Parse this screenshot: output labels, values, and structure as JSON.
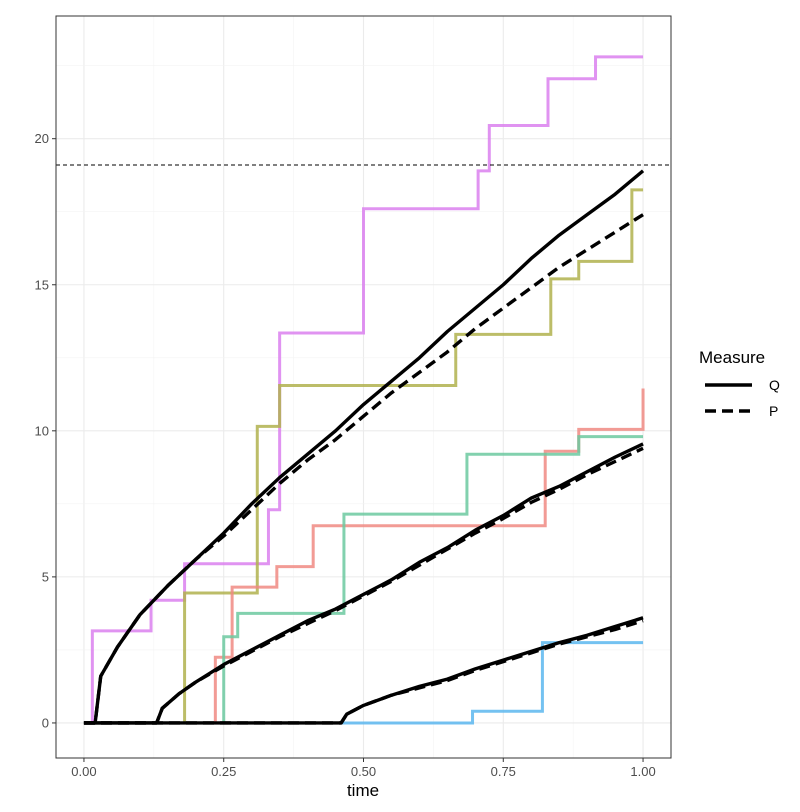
{
  "chart_data": {
    "type": "line",
    "title": "",
    "xlabel": "time",
    "ylabel": "",
    "xlim": [
      -0.05,
      1.05
    ],
    "ylim": [
      -1.2,
      24.2
    ],
    "x_ticks": [
      0,
      0.25,
      0.5,
      0.75,
      1
    ],
    "x_tick_labels": [
      "0.00",
      "0.25",
      "0.50",
      "0.75",
      "1.00"
    ],
    "y_ticks": [
      0,
      5,
      10,
      15,
      20
    ],
    "y_tick_labels": [
      "0",
      "5",
      "10",
      "15",
      "20"
    ],
    "grid": true,
    "reference_line": {
      "y": 19.1,
      "style": "dashed"
    },
    "step_series": [
      {
        "color": "#DA80EE",
        "x": [
          0,
          0.015,
          0.12,
          0.18,
          0.33,
          0.35,
          0.5,
          0.705,
          0.725,
          0.83,
          0.915,
          1.0
        ],
        "y": [
          0,
          3.15,
          4.2,
          5.45,
          7.3,
          13.35,
          17.6,
          18.9,
          20.45,
          22.05,
          22.8,
          22.8
        ]
      },
      {
        "color": "#B0B24E",
        "x": [
          0,
          0.18,
          0.31,
          0.35,
          0.665,
          0.835,
          0.885,
          0.98,
          1.0
        ],
        "y": [
          0,
          4.45,
          10.15,
          11.55,
          13.3,
          15.2,
          15.8,
          18.25,
          18.25
        ]
      },
      {
        "color": "#F08A82",
        "x": [
          0,
          0.235,
          0.265,
          0.345,
          0.41,
          0.825,
          0.885,
          1.0
        ],
        "y": [
          0,
          2.25,
          4.65,
          5.35,
          6.75,
          9.3,
          10.05,
          11.45
        ]
      },
      {
        "color": "#6CC9A0",
        "x": [
          0,
          0.25,
          0.275,
          0.465,
          0.685,
          0.885,
          1.0
        ],
        "y": [
          0,
          2.95,
          3.75,
          7.15,
          9.2,
          9.8,
          9.8
        ]
      },
      {
        "color": "#5CB7EE",
        "x": [
          0,
          0.695,
          0.82,
          1.0
        ],
        "y": [
          0,
          0.4,
          2.75,
          2.75
        ]
      }
    ],
    "series": [
      {
        "name": "Q",
        "style": "solid",
        "start": 0.02,
        "points": [
          [
            0.02,
            0
          ],
          [
            0.03,
            1.6
          ],
          [
            0.06,
            2.6
          ],
          [
            0.1,
            3.7
          ],
          [
            0.15,
            4.7
          ],
          [
            0.2,
            5.6
          ],
          [
            0.25,
            6.5
          ],
          [
            0.3,
            7.5
          ],
          [
            0.35,
            8.4
          ],
          [
            0.4,
            9.2
          ],
          [
            0.45,
            10.0
          ],
          [
            0.5,
            10.9
          ],
          [
            0.55,
            11.7
          ],
          [
            0.6,
            12.5
          ],
          [
            0.65,
            13.4
          ],
          [
            0.7,
            14.2
          ],
          [
            0.75,
            15.0
          ],
          [
            0.8,
            15.9
          ],
          [
            0.85,
            16.7
          ],
          [
            0.9,
            17.4
          ],
          [
            0.95,
            18.1
          ],
          [
            1.0,
            18.9
          ]
        ]
      },
      {
        "name": "P",
        "style": "dashed",
        "start": 0.02,
        "points": [
          [
            0.02,
            0
          ],
          [
            0.03,
            1.6
          ],
          [
            0.06,
            2.6
          ],
          [
            0.1,
            3.7
          ],
          [
            0.15,
            4.7
          ],
          [
            0.2,
            5.6
          ],
          [
            0.25,
            6.4
          ],
          [
            0.3,
            7.3
          ],
          [
            0.35,
            8.2
          ],
          [
            0.4,
            9.0
          ],
          [
            0.45,
            9.7
          ],
          [
            0.5,
            10.5
          ],
          [
            0.55,
            11.3
          ],
          [
            0.6,
            12.0
          ],
          [
            0.65,
            12.7
          ],
          [
            0.7,
            13.5
          ],
          [
            0.75,
            14.2
          ],
          [
            0.8,
            14.9
          ],
          [
            0.85,
            15.6
          ],
          [
            0.9,
            16.2
          ],
          [
            0.95,
            16.8
          ],
          [
            1.0,
            17.4
          ]
        ]
      },
      {
        "name": "Q",
        "style": "solid",
        "start": 0.13,
        "points": [
          [
            0.13,
            0
          ],
          [
            0.14,
            0.5
          ],
          [
            0.17,
            1.0
          ],
          [
            0.2,
            1.4
          ],
          [
            0.25,
            2.0
          ],
          [
            0.3,
            2.5
          ],
          [
            0.35,
            3.0
          ],
          [
            0.4,
            3.5
          ],
          [
            0.45,
            3.9
          ],
          [
            0.5,
            4.4
          ],
          [
            0.55,
            4.9
          ],
          [
            0.6,
            5.5
          ],
          [
            0.65,
            6.0
          ],
          [
            0.7,
            6.6
          ],
          [
            0.75,
            7.1
          ],
          [
            0.8,
            7.7
          ],
          [
            0.85,
            8.1
          ],
          [
            0.9,
            8.6
          ],
          [
            0.95,
            9.1
          ],
          [
            1.0,
            9.55
          ]
        ]
      },
      {
        "name": "P",
        "style": "dashed",
        "start": 0.13,
        "points": [
          [
            0.13,
            0
          ],
          [
            0.14,
            0.5
          ],
          [
            0.17,
            1.0
          ],
          [
            0.2,
            1.4
          ],
          [
            0.25,
            1.95
          ],
          [
            0.3,
            2.45
          ],
          [
            0.35,
            2.95
          ],
          [
            0.4,
            3.4
          ],
          [
            0.45,
            3.85
          ],
          [
            0.5,
            4.35
          ],
          [
            0.55,
            4.85
          ],
          [
            0.6,
            5.4
          ],
          [
            0.65,
            5.95
          ],
          [
            0.7,
            6.5
          ],
          [
            0.75,
            7.0
          ],
          [
            0.8,
            7.55
          ],
          [
            0.85,
            8.0
          ],
          [
            0.9,
            8.5
          ],
          [
            0.95,
            8.95
          ],
          [
            1.0,
            9.4
          ]
        ]
      },
      {
        "name": "Q",
        "style": "solid",
        "start": 0.46,
        "points": [
          [
            0.46,
            0
          ],
          [
            0.47,
            0.3
          ],
          [
            0.5,
            0.6
          ],
          [
            0.55,
            0.95
          ],
          [
            0.6,
            1.25
          ],
          [
            0.65,
            1.5
          ],
          [
            0.7,
            1.85
          ],
          [
            0.75,
            2.15
          ],
          [
            0.8,
            2.45
          ],
          [
            0.85,
            2.75
          ],
          [
            0.9,
            3.0
          ],
          [
            0.95,
            3.3
          ],
          [
            1.0,
            3.6
          ]
        ]
      },
      {
        "name": "P",
        "style": "dashed",
        "start": 0.46,
        "points": [
          [
            0.46,
            0
          ],
          [
            0.47,
            0.3
          ],
          [
            0.5,
            0.6
          ],
          [
            0.55,
            0.95
          ],
          [
            0.6,
            1.2
          ],
          [
            0.65,
            1.45
          ],
          [
            0.7,
            1.8
          ],
          [
            0.75,
            2.1
          ],
          [
            0.8,
            2.4
          ],
          [
            0.85,
            2.7
          ],
          [
            0.9,
            2.95
          ],
          [
            0.95,
            3.2
          ],
          [
            1.0,
            3.5
          ]
        ]
      }
    ],
    "legend": {
      "title": "Measure",
      "placement": "right",
      "entries": [
        {
          "label": "Q",
          "style": "solid"
        },
        {
          "label": "P",
          "style": "dashed"
        }
      ]
    }
  }
}
